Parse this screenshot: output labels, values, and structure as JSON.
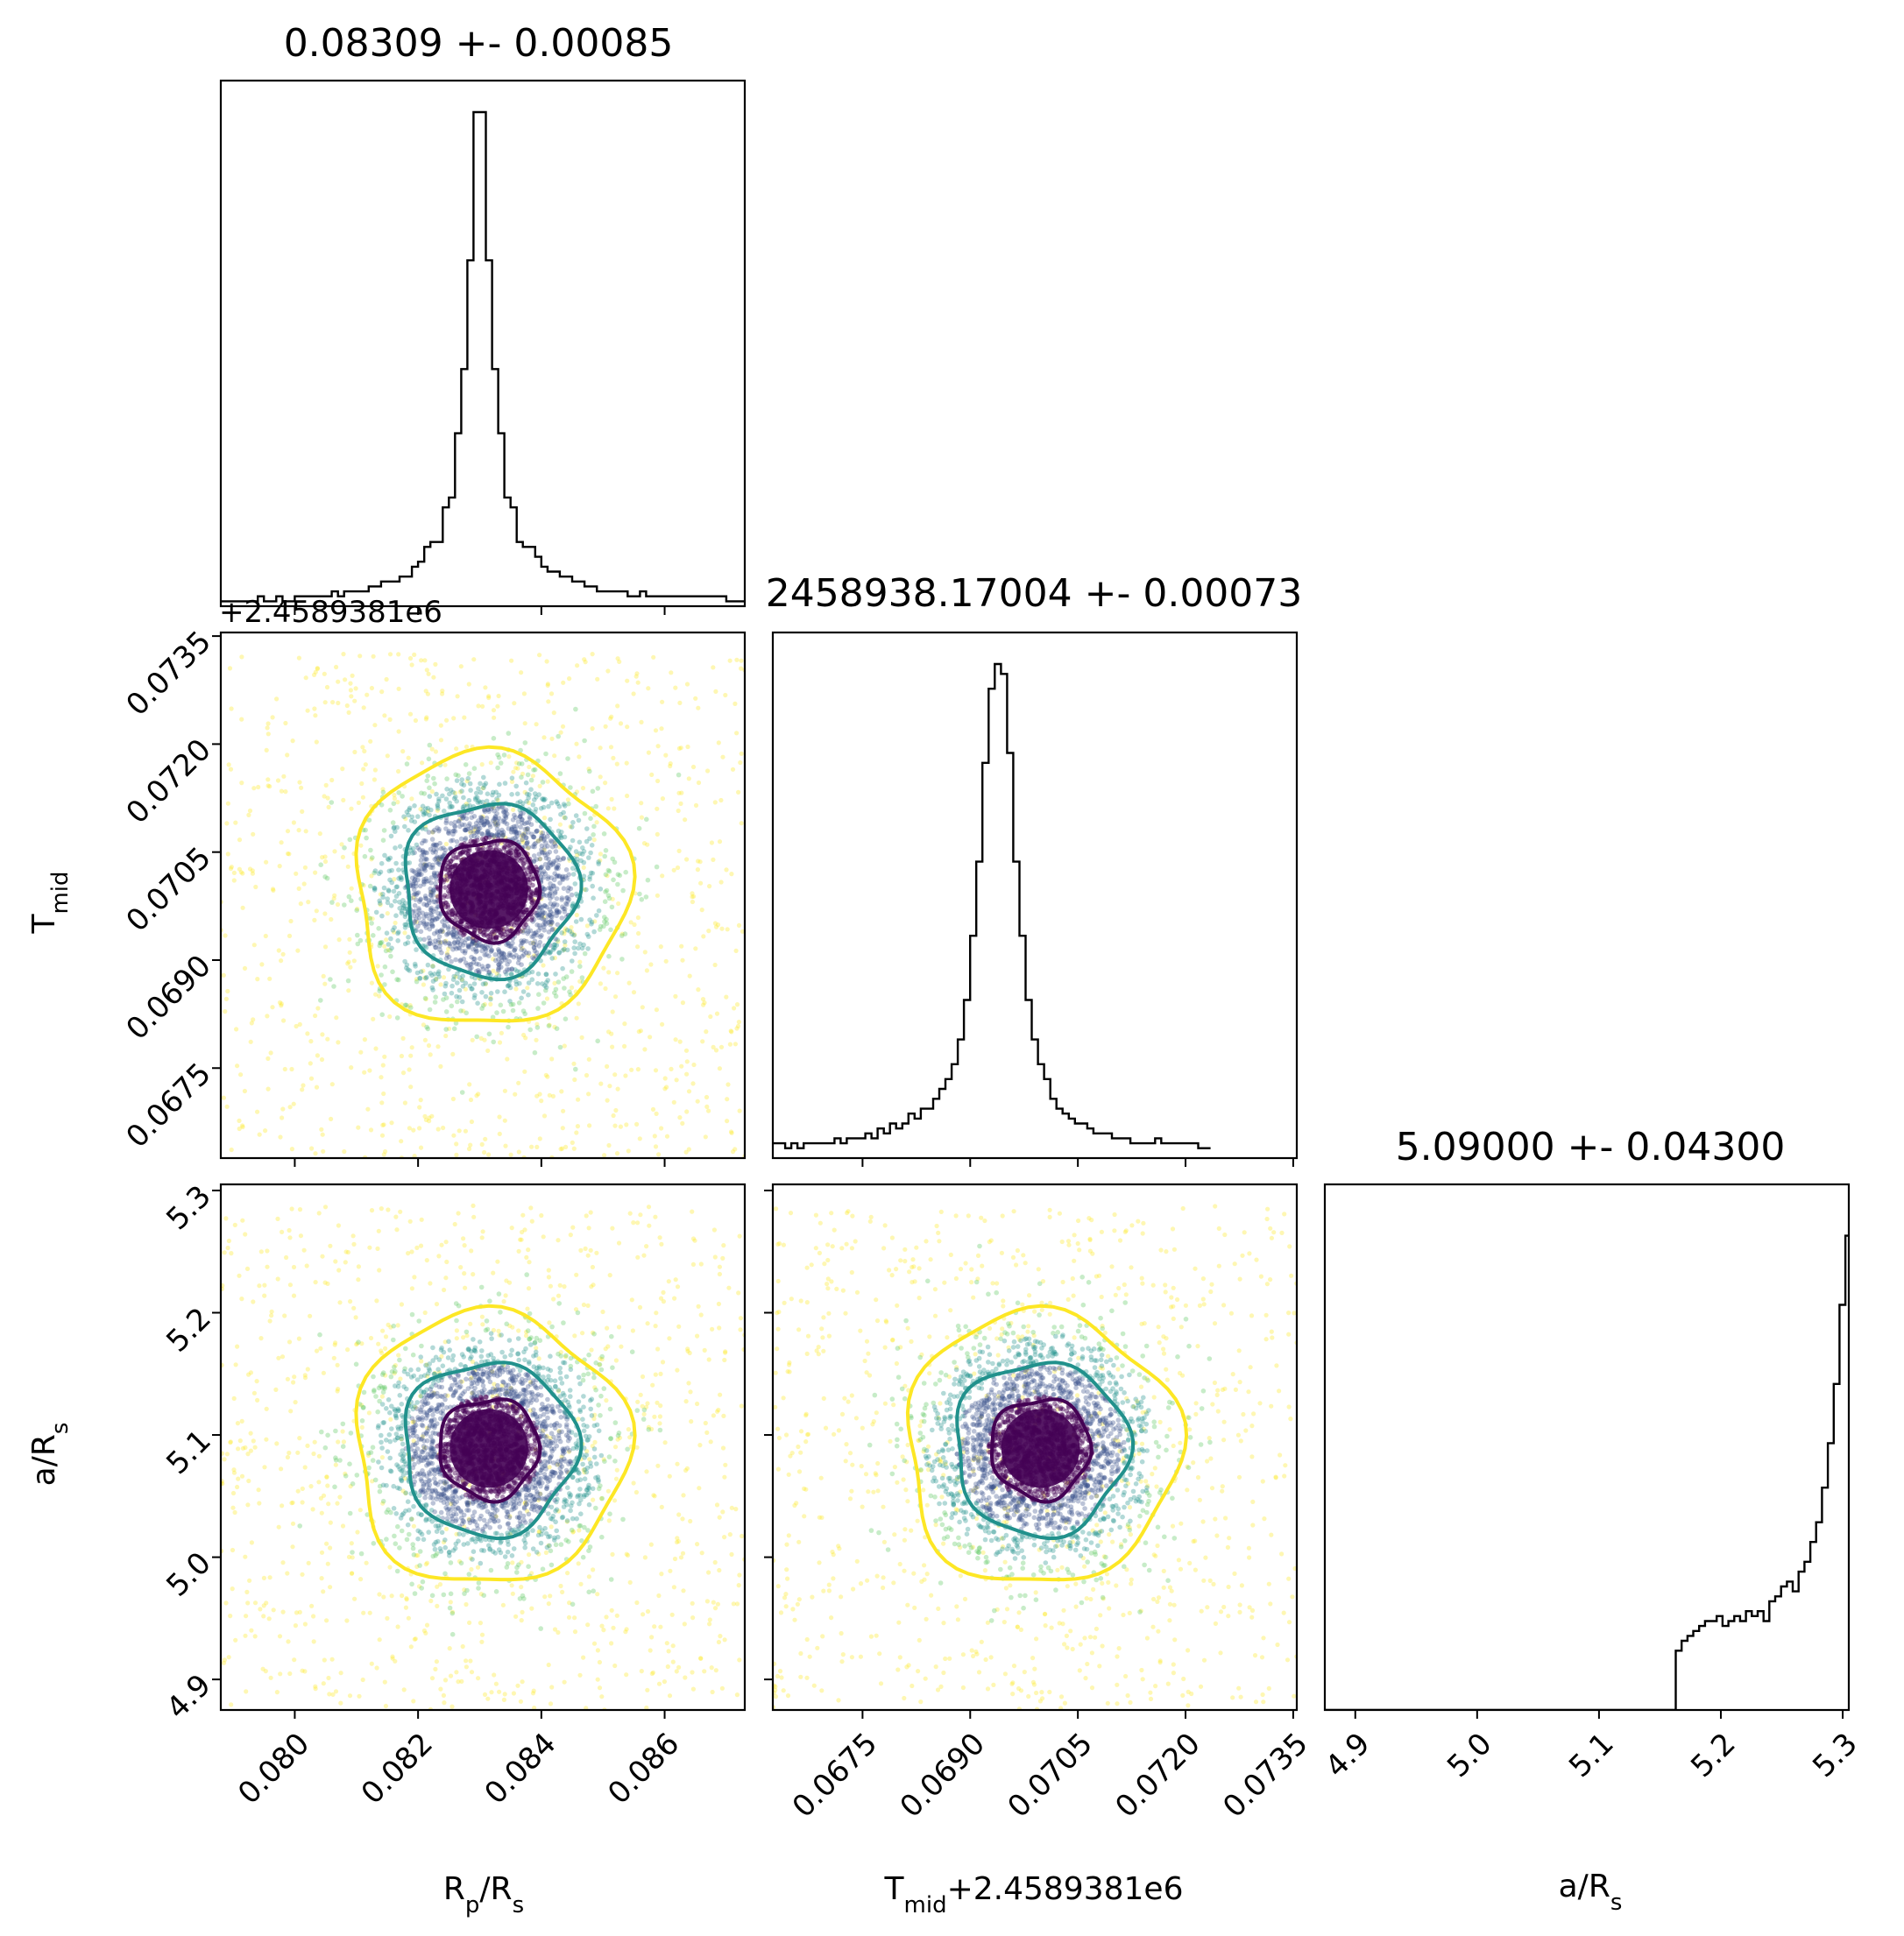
{
  "chart_data": {
    "type": "scatter",
    "layout": "corner",
    "parameters": [
      {
        "key": "rp",
        "label_main": "R",
        "label_sub": "p",
        "label_tail": "/R",
        "label_sub2": "s",
        "range": [
          0.0788,
          0.0873
        ],
        "ticks": [
          "0.080",
          "0.082",
          "0.084",
          "0.086"
        ],
        "tick_values": [
          0.08,
          0.082,
          0.084,
          0.086
        ]
      },
      {
        "key": "tmid",
        "label_main": "T",
        "label_sub": "mid",
        "label_tail": "",
        "label_sub2": "",
        "range": [
          0.06625,
          0.07355
        ],
        "ticks": [
          "0.0675",
          "0.0690",
          "0.0705",
          "0.0720",
          "0.0735"
        ],
        "tick_values": [
          0.0675,
          0.069,
          0.0705,
          0.072,
          0.0735
        ],
        "offset": "+2.4589381e6"
      },
      {
        "key": "ars",
        "label_main": "a/R",
        "label_sub": "s",
        "label_tail": "",
        "label_sub2": "",
        "range": [
          4.875,
          5.305
        ],
        "ticks": [
          "4.9",
          "5.0",
          "5.1",
          "5.2",
          "5.3"
        ],
        "tick_values": [
          4.9,
          5.0,
          5.1,
          5.2,
          5.3
        ]
      }
    ],
    "titles": [
      "0.08309 +- 0.00085",
      "2458938.17004 +- 0.00073",
      "5.09000 +- 0.04300"
    ],
    "xlabel_middle": "T",
    "xlabel_middle_sub": "mid",
    "xlabel_middle_offset": "+2.4589381e6",
    "histograms": [
      {
        "x_min": 0.0788,
        "bin_width": 0.0001,
        "counts": [
          1,
          1,
          1,
          1,
          1,
          1,
          2,
          1,
          1,
          2,
          1,
          1,
          2,
          2,
          2,
          2,
          2,
          2,
          3,
          2,
          3,
          3,
          3,
          3,
          4,
          4,
          5,
          5,
          5,
          6,
          6,
          8,
          9,
          12,
          13,
          13,
          20,
          22,
          35,
          48,
          70,
          100,
          100,
          70,
          48,
          35,
          22,
          20,
          13,
          12,
          12,
          10,
          8,
          7,
          7,
          6,
          6,
          5,
          5,
          4,
          4,
          3,
          3,
          3,
          3,
          3,
          2,
          2,
          3,
          2,
          2,
          2,
          2,
          2,
          2,
          2,
          2,
          2,
          2,
          2,
          2,
          2,
          1,
          1,
          1,
          1
        ]
      },
      {
        "x_min": 0.06625,
        "bin_width": 8.59e-05,
        "counts": [
          3,
          3,
          2,
          3,
          2,
          3,
          3,
          3,
          3,
          3,
          4,
          3,
          4,
          4,
          4,
          5,
          4,
          6,
          5,
          7,
          6,
          7,
          9,
          8,
          10,
          10,
          12,
          14,
          16,
          19,
          24,
          32,
          45,
          60,
          80,
          95,
          100,
          98,
          82,
          60,
          45,
          32,
          24,
          19,
          16,
          12,
          10,
          9,
          8,
          7,
          7,
          6,
          5,
          5,
          5,
          4,
          4,
          4,
          3,
          3,
          3,
          3,
          4,
          3,
          3,
          3,
          3,
          3,
          3,
          2,
          2
        ]
      },
      {
        "x_min": 4.875,
        "bin_width": 0.0048,
        "counts": [
          0,
          0,
          0,
          0,
          0,
          0,
          0,
          0,
          0,
          0,
          0,
          0,
          0,
          0,
          0,
          0,
          0,
          0,
          0,
          0,
          0,
          0,
          0,
          0,
          0,
          0,
          0,
          0,
          0,
          0,
          0,
          0,
          0,
          0,
          0,
          0,
          0,
          0,
          0,
          0,
          0,
          0,
          0,
          0,
          0,
          0,
          0,
          0,
          0,
          0,
          0,
          0,
          0,
          0,
          0,
          0,
          0,
          0,
          0,
          0,
          12,
          14,
          15,
          16,
          17,
          18,
          18,
          19,
          17,
          18,
          19,
          18,
          20,
          19,
          20,
          18,
          22,
          23,
          25,
          26,
          24,
          28,
          30,
          34,
          38,
          45,
          54,
          66,
          82,
          96,
          100,
          84,
          60,
          44,
          32,
          27,
          24,
          22,
          20,
          19,
          18,
          17,
          16,
          16,
          15,
          14,
          15,
          14,
          13,
          14,
          13,
          12,
          12,
          13,
          12,
          11,
          12,
          11,
          11,
          11,
          10,
          10,
          10
        ]
      }
    ],
    "scatter_panels": [
      {
        "x_param": "rp",
        "y_param": "tmid",
        "center": [
          0.08315,
          0.06998
        ],
        "sigma": [
          0.00085,
          0.00073
        ]
      },
      {
        "x_param": "rp",
        "y_param": "ars",
        "center": [
          0.08315,
          5.089
        ],
        "sigma": [
          0.00085,
          0.043
        ]
      },
      {
        "x_param": "tmid",
        "y_param": "ars",
        "center": [
          0.06998,
          5.089
        ],
        "sigma": [
          0.00073,
          0.043
        ]
      }
    ],
    "contour_colors": [
      "#fde725",
      "#21918c",
      "#440154"
    ],
    "point_colors": [
      "#fde725",
      "#5ec962",
      "#21918c",
      "#3b528b",
      "#440154"
    ]
  }
}
